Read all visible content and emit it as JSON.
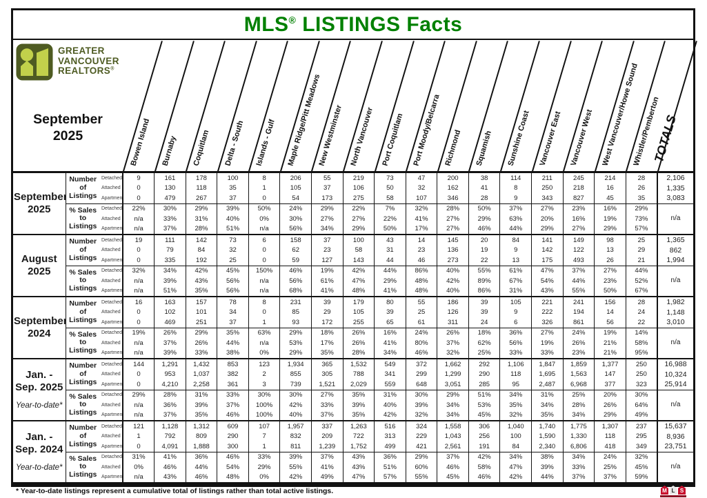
{
  "title": {
    "mls": "MLS",
    "reg": "®",
    "rest": " LISTINGS Facts"
  },
  "brand": {
    "line1": "GREATER",
    "line2": "VANCOUVER",
    "line3": "REALTORS",
    "reg": "®"
  },
  "month": {
    "line1": "September",
    "line2": "2025"
  },
  "columns": [
    "Bowen Island",
    "Burnaby",
    "Coquitlam",
    "Delta - South",
    "Islands - Gulf",
    "Maple Ridge/Pitt Meadows",
    "New Westminster",
    "North Vancouver",
    "Port Coquitlam",
    "Port Moody/Belcarra",
    "Richmond",
    "Squamish",
    "Sunshine Coast",
    "Vancouver East",
    "Vancouver West",
    "West Vancouver/Howe Sound",
    "Whistler/Pemberton"
  ],
  "totals_label": "TOTALS",
  "row_headers": {
    "number_label_lines": [
      "Number",
      "of",
      "Listings"
    ],
    "pct_label_lines": [
      "% Sales to",
      "Listings"
    ],
    "types": [
      "Detached",
      "Attached",
      "Apartment"
    ]
  },
  "groups": [
    {
      "period_lines": [
        "September",
        "2025"
      ],
      "ytd_note": "",
      "number_of_listings": {
        "Detached": [
          "9",
          "161",
          "178",
          "100",
          "8",
          "206",
          "55",
          "219",
          "73",
          "47",
          "200",
          "38",
          "114",
          "211",
          "245",
          "214",
          "28"
        ],
        "Attached": [
          "0",
          "130",
          "118",
          "35",
          "1",
          "105",
          "37",
          "106",
          "50",
          "32",
          "162",
          "41",
          "8",
          "250",
          "218",
          "16",
          "26"
        ],
        "Apartment": [
          "0",
          "479",
          "267",
          "37",
          "0",
          "54",
          "173",
          "275",
          "58",
          "107",
          "346",
          "28",
          "9",
          "343",
          "827",
          "45",
          "35"
        ]
      },
      "listings_totals": {
        "Detached": "2,106",
        "Attached": "1,335",
        "Apartment": "3,083"
      },
      "pct_sales_to_listings": {
        "Detached": [
          "22%",
          "30%",
          "29%",
          "39%",
          "50%",
          "24%",
          "29%",
          "22%",
          "7%",
          "32%",
          "28%",
          "50%",
          "37%",
          "27%",
          "23%",
          "16%",
          "29%"
        ],
        "Attached": [
          "n/a",
          "33%",
          "31%",
          "40%",
          "0%",
          "30%",
          "27%",
          "27%",
          "22%",
          "41%",
          "27%",
          "29%",
          "63%",
          "20%",
          "16%",
          "19%",
          "73%"
        ],
        "Apartment": [
          "n/a",
          "37%",
          "28%",
          "51%",
          "n/a",
          "56%",
          "34%",
          "29%",
          "50%",
          "17%",
          "27%",
          "46%",
          "44%",
          "29%",
          "27%",
          "29%",
          "57%"
        ]
      },
      "pct_total": "n/a"
    },
    {
      "period_lines": [
        "August",
        "2025"
      ],
      "ytd_note": "",
      "number_of_listings": {
        "Detached": [
          "19",
          "111",
          "142",
          "73",
          "6",
          "158",
          "37",
          "100",
          "43",
          "14",
          "145",
          "20",
          "84",
          "141",
          "149",
          "98",
          "25"
        ],
        "Attached": [
          "0",
          "79",
          "84",
          "32",
          "0",
          "62",
          "23",
          "58",
          "31",
          "23",
          "136",
          "19",
          "9",
          "142",
          "122",
          "13",
          "29"
        ],
        "Apartment": [
          "0",
          "335",
          "192",
          "25",
          "0",
          "59",
          "127",
          "143",
          "44",
          "46",
          "273",
          "22",
          "13",
          "175",
          "493",
          "26",
          "21"
        ]
      },
      "listings_totals": {
        "Detached": "1,365",
        "Attached": "862",
        "Apartment": "1,994"
      },
      "pct_sales_to_listings": {
        "Detached": [
          "32%",
          "34%",
          "42%",
          "45%",
          "150%",
          "46%",
          "19%",
          "42%",
          "44%",
          "86%",
          "40%",
          "55%",
          "61%",
          "47%",
          "37%",
          "27%",
          "44%"
        ],
        "Attached": [
          "n/a",
          "39%",
          "43%",
          "56%",
          "n/a",
          "56%",
          "61%",
          "47%",
          "29%",
          "48%",
          "42%",
          "89%",
          "67%",
          "54%",
          "44%",
          "23%",
          "52%"
        ],
        "Apartment": [
          "n/a",
          "51%",
          "35%",
          "56%",
          "n/a",
          "68%",
          "41%",
          "48%",
          "41%",
          "48%",
          "40%",
          "86%",
          "31%",
          "43%",
          "55%",
          "50%",
          "67%"
        ]
      },
      "pct_total": "n/a"
    },
    {
      "period_lines": [
        "September",
        "2024"
      ],
      "ytd_note": "",
      "number_of_listings": {
        "Detached": [
          "16",
          "163",
          "157",
          "78",
          "8",
          "231",
          "39",
          "179",
          "80",
          "55",
          "186",
          "39",
          "105",
          "221",
          "241",
          "156",
          "28"
        ],
        "Attached": [
          "0",
          "102",
          "101",
          "34",
          "0",
          "85",
          "29",
          "105",
          "39",
          "25",
          "126",
          "39",
          "9",
          "222",
          "194",
          "14",
          "24"
        ],
        "Apartment": [
          "0",
          "469",
          "251",
          "37",
          "1",
          "93",
          "172",
          "255",
          "65",
          "61",
          "311",
          "24",
          "6",
          "326",
          "861",
          "56",
          "22"
        ]
      },
      "listings_totals": {
        "Detached": "1,982",
        "Attached": "1,148",
        "Apartment": "3,010"
      },
      "pct_sales_to_listings": {
        "Detached": [
          "19%",
          "26%",
          "29%",
          "35%",
          "63%",
          "29%",
          "18%",
          "26%",
          "16%",
          "24%",
          "26%",
          "18%",
          "36%",
          "27%",
          "24%",
          "19%",
          "14%"
        ],
        "Attached": [
          "n/a",
          "37%",
          "26%",
          "44%",
          "n/a",
          "53%",
          "17%",
          "26%",
          "41%",
          "80%",
          "37%",
          "62%",
          "56%",
          "19%",
          "26%",
          "21%",
          "58%"
        ],
        "Apartment": [
          "n/a",
          "39%",
          "33%",
          "38%",
          "0%",
          "29%",
          "35%",
          "28%",
          "34%",
          "46%",
          "32%",
          "25%",
          "33%",
          "33%",
          "23%",
          "21%",
          "95%"
        ]
      },
      "pct_total": "n/a"
    },
    {
      "period_lines": [
        "Jan. -",
        "Sep. 2025"
      ],
      "ytd_note": "Year-to-date*",
      "number_of_listings": {
        "Detached": [
          "144",
          "1,291",
          "1,432",
          "853",
          "123",
          "1,934",
          "365",
          "1,532",
          "549",
          "372",
          "1,662",
          "292",
          "1,106",
          "1,847",
          "1,859",
          "1,377",
          "250"
        ],
        "Attached": [
          "0",
          "953",
          "1,037",
          "382",
          "2",
          "855",
          "305",
          "788",
          "341",
          "299",
          "1,299",
          "290",
          "118",
          "1,695",
          "1,563",
          "147",
          "250"
        ],
        "Apartment": [
          "0",
          "4,210",
          "2,258",
          "361",
          "3",
          "739",
          "1,521",
          "2,029",
          "559",
          "648",
          "3,051",
          "285",
          "95",
          "2,487",
          "6,968",
          "377",
          "323"
        ]
      },
      "listings_totals": {
        "Detached": "16,988",
        "Attached": "10,324",
        "Apartment": "25,914"
      },
      "pct_sales_to_listings": {
        "Detached": [
          "29%",
          "28%",
          "31%",
          "33%",
          "30%",
          "30%",
          "27%",
          "35%",
          "31%",
          "30%",
          "29%",
          "51%",
          "34%",
          "31%",
          "25%",
          "20%",
          "30%"
        ],
        "Attached": [
          "n/a",
          "36%",
          "39%",
          "37%",
          "100%",
          "42%",
          "33%",
          "39%",
          "40%",
          "39%",
          "34%",
          "53%",
          "35%",
          "34%",
          "28%",
          "26%",
          "64%"
        ],
        "Apartment": [
          "n/a",
          "37%",
          "35%",
          "46%",
          "100%",
          "40%",
          "37%",
          "35%",
          "42%",
          "32%",
          "34%",
          "45%",
          "32%",
          "35%",
          "34%",
          "29%",
          "49%"
        ]
      },
      "pct_total": "n/a"
    },
    {
      "period_lines": [
        "Jan. -",
        "Sep. 2024"
      ],
      "ytd_note": "Year-to-date*",
      "number_of_listings": {
        "Detached": [
          "121",
          "1,128",
          "1,312",
          "609",
          "107",
          "1,957",
          "337",
          "1,263",
          "516",
          "324",
          "1,558",
          "306",
          "1,040",
          "1,740",
          "1,775",
          "1,307",
          "237"
        ],
        "Attached": [
          "1",
          "792",
          "809",
          "290",
          "7",
          "832",
          "209",
          "722",
          "313",
          "229",
          "1,043",
          "256",
          "100",
          "1,590",
          "1,330",
          "118",
          "295"
        ],
        "Apartment": [
          "0",
          "4,091",
          "1,888",
          "300",
          "1",
          "811",
          "1,239",
          "1,752",
          "499",
          "421",
          "2,561",
          "191",
          "84",
          "2,340",
          "6,806",
          "418",
          "349"
        ]
      },
      "listings_totals": {
        "Detached": "15,637",
        "Attached": "8,936",
        "Apartment": "23,751"
      },
      "pct_sales_to_listings": {
        "Detached": [
          "31%",
          "41%",
          "36%",
          "46%",
          "33%",
          "39%",
          "37%",
          "43%",
          "36%",
          "29%",
          "37%",
          "42%",
          "34%",
          "38%",
          "34%",
          "24%",
          "32%"
        ],
        "Attached": [
          "0%",
          "46%",
          "44%",
          "54%",
          "29%",
          "55%",
          "41%",
          "43%",
          "51%",
          "60%",
          "46%",
          "58%",
          "47%",
          "39%",
          "33%",
          "25%",
          "45%"
        ],
        "Apartment": [
          "n/a",
          "43%",
          "46%",
          "48%",
          "0%",
          "42%",
          "49%",
          "47%",
          "57%",
          "55%",
          "45%",
          "46%",
          "42%",
          "44%",
          "37%",
          "37%",
          "59%"
        ]
      },
      "pct_total": "n/a"
    }
  ],
  "footnote": "* Year-to-date listings represent a cumulative total of listings rather than total active listings.",
  "mls_tiles": [
    "M",
    "L",
    "S"
  ],
  "colors": {
    "title_green": "#008000",
    "logo_olive": "#4e5b22",
    "logo_lime": "#c2d14b",
    "mls_red": "#c8102e"
  }
}
